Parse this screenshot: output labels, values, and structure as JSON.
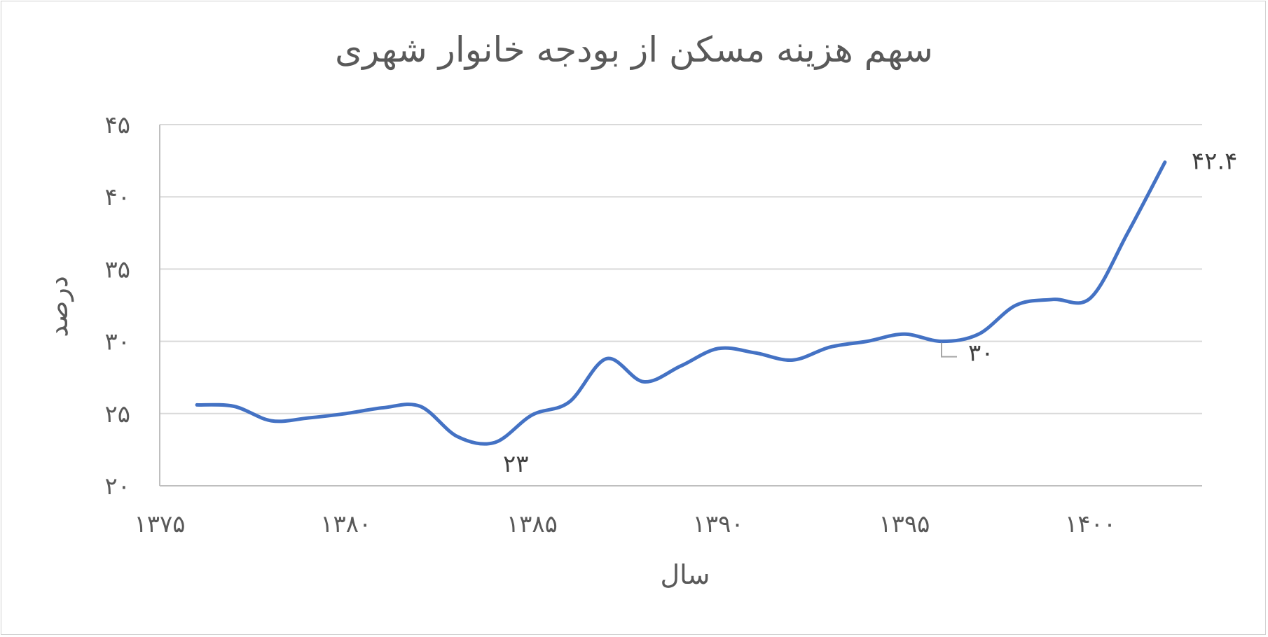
{
  "chart_data": {
    "type": "line",
    "title": "سهم هزینه مسکن از بودجه خانوار شهری",
    "xlabel": "سال",
    "ylabel": "درصد",
    "xlim": [
      1375,
      1403
    ],
    "ylim": [
      20,
      45
    ],
    "x_ticks": [
      1375,
      1380,
      1385,
      1390,
      1395,
      1400
    ],
    "x_tick_labels": [
      "۱۳۷۵",
      "۱۳۸۰",
      "۱۳۸۵",
      "۱۳۹۰",
      "۱۳۹۵",
      "۱۴۰۰"
    ],
    "y_ticks": [
      20,
      25,
      30,
      35,
      40,
      45
    ],
    "y_tick_labels": [
      "۲۰",
      "۲۵",
      "۳۰",
      "۳۵",
      "۴۰",
      "۴۵"
    ],
    "grid": true,
    "color": "#4472c4",
    "series": [
      {
        "x": [
          1376,
          1377,
          1378,
          1379,
          1380,
          1381,
          1382,
          1383,
          1384,
          1385,
          1386,
          1387,
          1388,
          1389,
          1390,
          1391,
          1392,
          1393,
          1394,
          1395,
          1396,
          1397,
          1398,
          1399,
          1400,
          1401,
          1402
        ],
        "values": [
          25.6,
          25.5,
          24.5,
          24.7,
          25.0,
          25.4,
          25.5,
          23.4,
          23.0,
          24.9,
          25.8,
          28.8,
          27.2,
          28.3,
          29.5,
          29.2,
          28.7,
          29.6,
          30.0,
          30.5,
          30.0,
          30.5,
          32.5,
          32.9,
          33.0,
          37.5,
          42.4
        ]
      }
    ],
    "data_labels": [
      {
        "x": 1384,
        "value": 23.0,
        "text": "۲۳"
      },
      {
        "x": 1396,
        "value": 30.0,
        "text": "۳۰"
      },
      {
        "x": 1402,
        "value": 42.4,
        "text": "۴۲.۴"
      }
    ]
  }
}
